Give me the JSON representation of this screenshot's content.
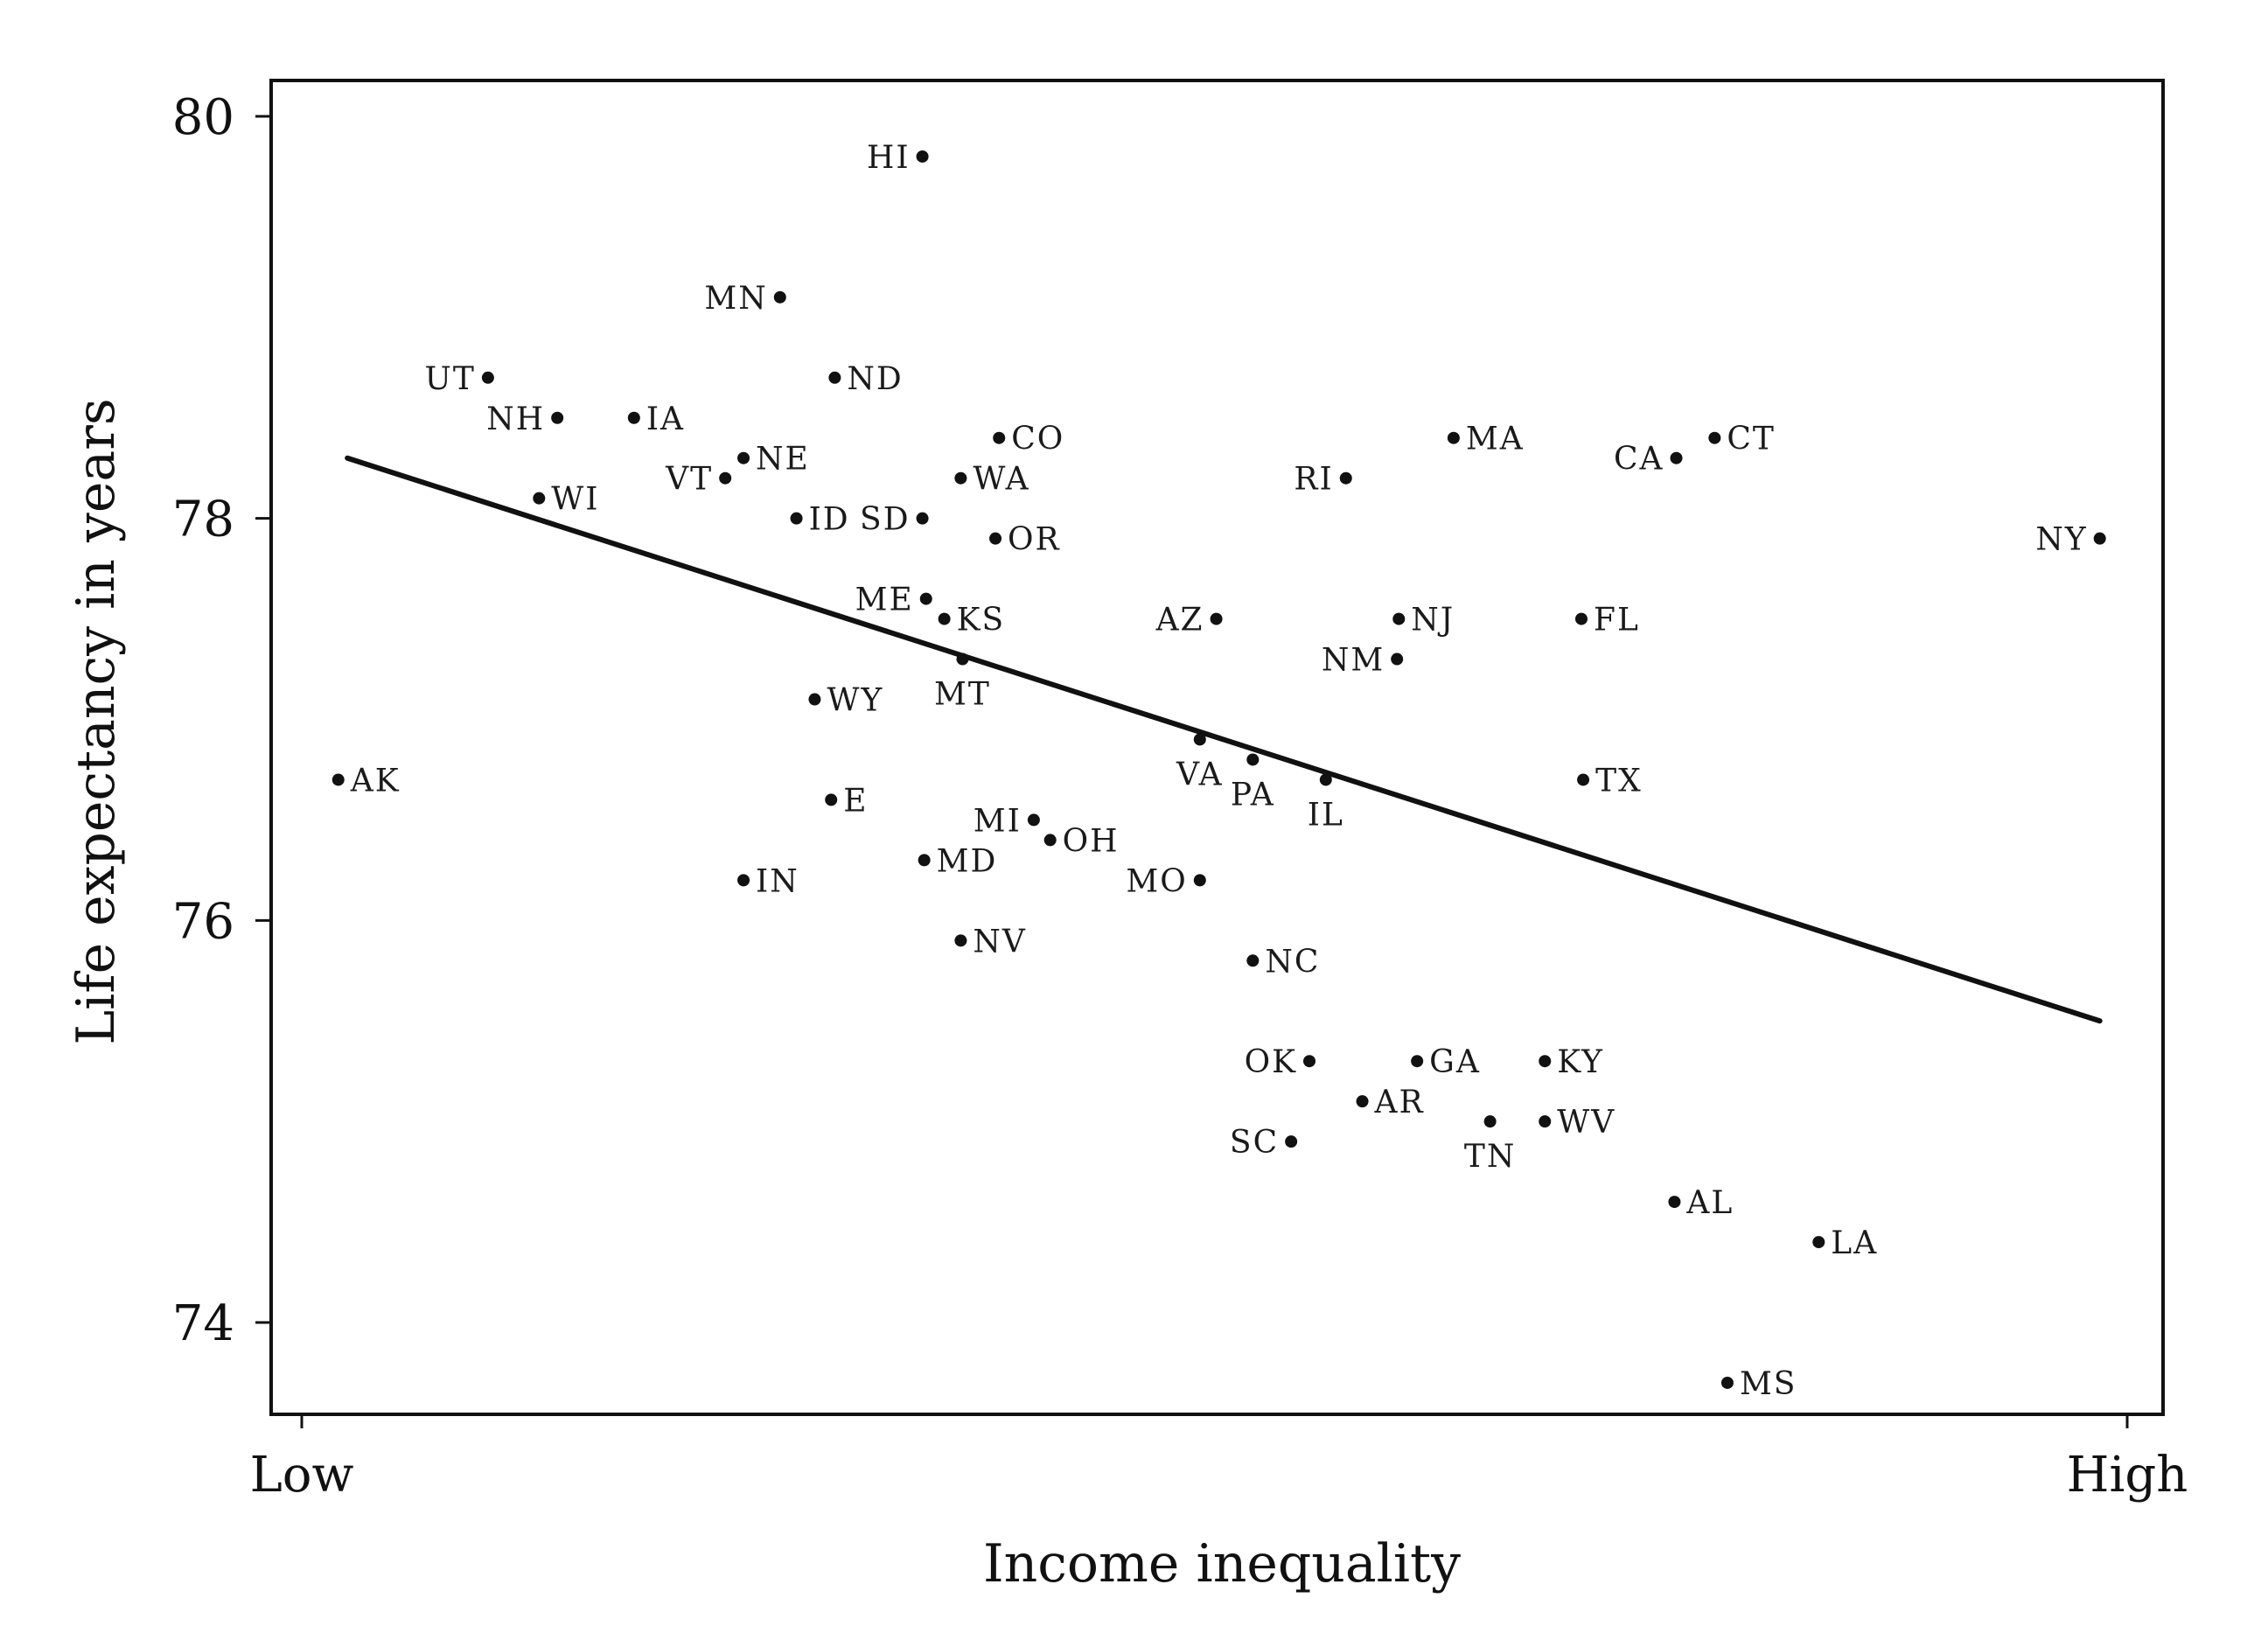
{
  "chart_data": {
    "type": "scatter",
    "xlabel": "Income inequality",
    "ylabel": "Life expectancy in years",
    "xlim": [
      0,
      100
    ],
    "ylim": [
      73.35,
      80.2
    ],
    "x_tick_labels": [
      {
        "value": 0,
        "label": "Low"
      },
      {
        "value": 100,
        "label": "High"
      }
    ],
    "y_tick_labels": [
      {
        "value": 74,
        "label": "74"
      },
      {
        "value": 76,
        "label": "76"
      },
      {
        "value": 78,
        "label": "78"
      },
      {
        "value": 80,
        "label": "80"
      }
    ],
    "trend_line": {
      "x": [
        2.5,
        98.5
      ],
      "y": [
        78.3,
        75.5
      ]
    },
    "points": [
      {
        "label": "HI",
        "x": 34,
        "y": 79.8
      },
      {
        "label": "MN",
        "x": 26.2,
        "y": 79.1
      },
      {
        "label": "UT",
        "x": 10.2,
        "y": 78.7
      },
      {
        "label": "ND",
        "x": 29.2,
        "y": 78.7
      },
      {
        "label": "NH",
        "x": 14,
        "y": 78.5
      },
      {
        "label": "IA",
        "x": 18.2,
        "y": 78.5
      },
      {
        "label": "CO",
        "x": 38.2,
        "y": 78.4
      },
      {
        "label": "MA",
        "x": 63.1,
        "y": 78.4
      },
      {
        "label": "CT",
        "x": 77.4,
        "y": 78.4
      },
      {
        "label": "CA",
        "x": 75.3,
        "y": 78.3
      },
      {
        "label": "NE",
        "x": 24.2,
        "y": 78.3
      },
      {
        "label": "VT",
        "x": 23.2,
        "y": 78.2
      },
      {
        "label": "WA",
        "x": 36.1,
        "y": 78.2
      },
      {
        "label": "RI",
        "x": 57.2,
        "y": 78.2
      },
      {
        "label": "WI",
        "x": 13,
        "y": 78.1
      },
      {
        "label": "ID",
        "x": 27.1,
        "y": 78.0
      },
      {
        "label": "SD",
        "x": 34,
        "y": 78.0
      },
      {
        "label": "NY",
        "x": 98.5,
        "y": 77.9
      },
      {
        "label": "OR",
        "x": 38,
        "y": 77.9
      },
      {
        "label": "ME",
        "x": 34.2,
        "y": 77.6
      },
      {
        "label": "KS",
        "x": 35.2,
        "y": 77.5
      },
      {
        "label": "AZ",
        "x": 50.1,
        "y": 77.5
      },
      {
        "label": "NJ",
        "x": 60.1,
        "y": 77.5
      },
      {
        "label": "FL",
        "x": 70.1,
        "y": 77.5
      },
      {
        "label": "MT",
        "x": 36.2,
        "y": 77.3
      },
      {
        "label": "NM",
        "x": 60,
        "y": 77.3
      },
      {
        "label": "WY",
        "x": 28.1,
        "y": 77.1
      },
      {
        "label": "VA",
        "x": 49.2,
        "y": 76.9
      },
      {
        "label": "PA",
        "x": 52.1,
        "y": 76.8
      },
      {
        "label": "AK",
        "x": 2,
        "y": 76.7
      },
      {
        "label": "IL",
        "x": 56.1,
        "y": 76.7
      },
      {
        "label": "TX",
        "x": 70.2,
        "y": 76.7
      },
      {
        "label": "E",
        "x": 29,
        "y": 76.6
      },
      {
        "label": "MI",
        "x": 40.1,
        "y": 76.5
      },
      {
        "label": "OH",
        "x": 41,
        "y": 76.4
      },
      {
        "label": "MD",
        "x": 34.1,
        "y": 76.3
      },
      {
        "label": "IN",
        "x": 24.2,
        "y": 76.2
      },
      {
        "label": "MO",
        "x": 49.2,
        "y": 76.2
      },
      {
        "label": "NV",
        "x": 36.1,
        "y": 75.9
      },
      {
        "label": "NC",
        "x": 52.1,
        "y": 75.8
      },
      {
        "label": "OK",
        "x": 55.2,
        "y": 75.3
      },
      {
        "label": "GA",
        "x": 61.1,
        "y": 75.3
      },
      {
        "label": "KY",
        "x": 68.1,
        "y": 75.3
      },
      {
        "label": "AR",
        "x": 58.1,
        "y": 75.1
      },
      {
        "label": "TN",
        "x": 65.1,
        "y": 75.0
      },
      {
        "label": "WV",
        "x": 68.1,
        "y": 75.0
      },
      {
        "label": "SC",
        "x": 54.2,
        "y": 74.9
      },
      {
        "label": "AL",
        "x": 75.2,
        "y": 74.6
      },
      {
        "label": "LA",
        "x": 83.1,
        "y": 74.4
      },
      {
        "label": "MS",
        "x": 78.1,
        "y": 73.7
      }
    ]
  }
}
